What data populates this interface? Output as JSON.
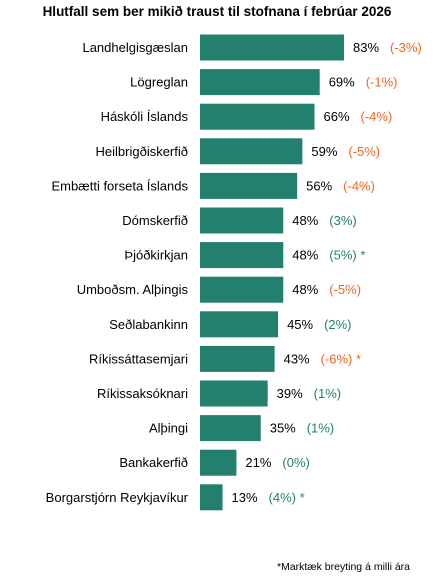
{
  "chart_data": {
    "type": "bar",
    "orientation": "horizontal",
    "title": "Hlutfall sem ber mikið traust til stofnana í febrúar 2026",
    "categories": [
      "Landhelgisgæslan",
      "Lögreglan",
      "Háskóli Íslands",
      "Heilbrigðiskerfið",
      "Embætti forseta Íslands",
      "Dómskerfið",
      "Þjóðkirkjan",
      "Umboðsm. Alþingis",
      "Seðlabankinn",
      "Ríkissáttasemjari",
      "Ríkissaksóknari",
      "Alþingi",
      "Bankakerfið",
      "Borgarstjórn Reykjavíkur"
    ],
    "values": [
      83,
      69,
      66,
      59,
      56,
      48,
      48,
      48,
      45,
      43,
      39,
      35,
      21,
      13
    ],
    "value_labels": [
      "83%",
      "69%",
      "66%",
      "59%",
      "56%",
      "48%",
      "48%",
      "48%",
      "45%",
      "43%",
      "39%",
      "35%",
      "21%",
      "13%"
    ],
    "changes": [
      -3,
      -1,
      -4,
      -5,
      -4,
      3,
      5,
      -5,
      2,
      -6,
      1,
      1,
      0,
      4
    ],
    "change_labels": [
      "(-3%)",
      "(-1%)",
      "(-4%)",
      "(-5%)",
      "(-4%)",
      "(3%)",
      "(5%) *",
      "(-5%)",
      "(2%)",
      "(-6%) *",
      "(1%)",
      "(1%)",
      "(0%)",
      "(4%) *"
    ],
    "xlim": [
      0,
      100
    ],
    "grid": false,
    "legend": "none",
    "footnote": "*Marktæk breyting á milli ára",
    "colors": {
      "bar": "#23806f",
      "negative_change": "#f26522",
      "positive_change": "#23806f"
    }
  }
}
